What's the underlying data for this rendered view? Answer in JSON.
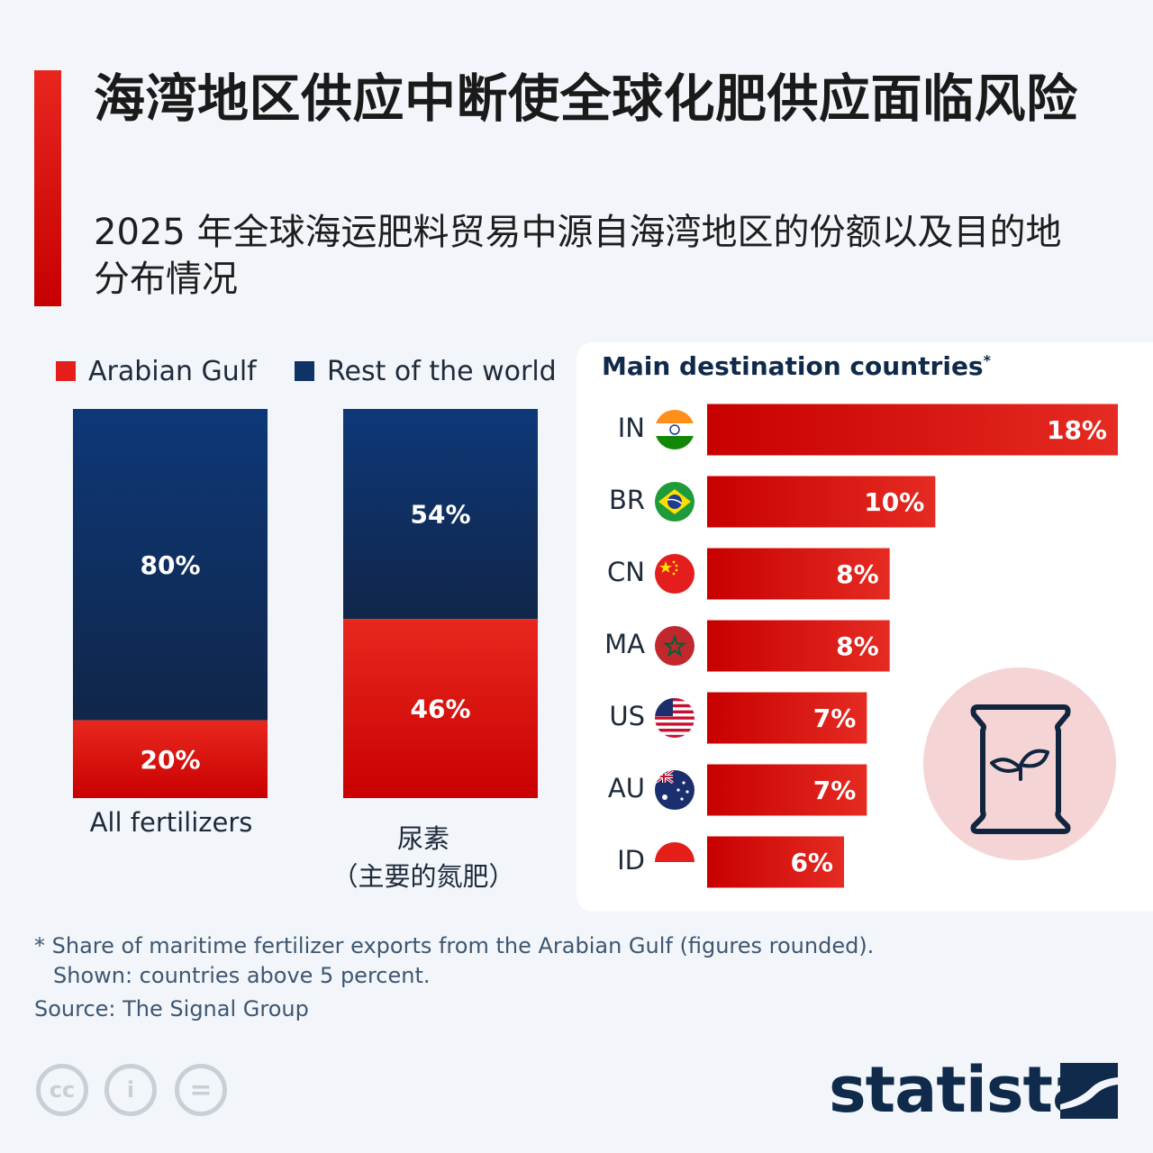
{
  "title": "海湾地区供应中断使全球化肥供应面临风险",
  "subtitle": "2025 年全球海运肥料贸易中源自海湾地区的份额以及目的地分布情况",
  "colors": {
    "gulf": "#e41f1a",
    "rest": "#0f3366",
    "bar": "#d81e19",
    "bag_bg": "#f5d4d6"
  },
  "chart_data": [
    {
      "type": "bar",
      "stacked": true,
      "legend": [
        "Arabian Gulf",
        "Rest of the world"
      ],
      "legend_position": "top",
      "categories": [
        "All fertilizers",
        "尿素（主要的氮肥）"
      ],
      "category_labels": [
        {
          "line1": "All fertilizers",
          "line2": ""
        },
        {
          "line1": "尿素",
          "line2": "（主要的氮肥）"
        }
      ],
      "series": [
        {
          "name": "Arabian Gulf",
          "values": [
            20,
            46
          ],
          "labels": [
            "20%",
            "46%"
          ]
        },
        {
          "name": "Rest of the world",
          "values": [
            80,
            54
          ],
          "labels": [
            "80%",
            "54%"
          ]
        }
      ],
      "ylim": [
        0,
        100
      ]
    },
    {
      "type": "bar",
      "orientation": "horizontal",
      "title": "Main destination countries",
      "title_marker": "*",
      "categories": [
        "IN",
        "BR",
        "CN",
        "MA",
        "US",
        "AU",
        "ID"
      ],
      "flags": [
        "india-flag-icon",
        "brazil-flag-icon",
        "china-flag-icon",
        "morocco-flag-icon",
        "usa-flag-icon",
        "australia-flag-icon",
        "indonesia-flag-icon"
      ],
      "values": [
        18,
        10,
        8,
        8,
        7,
        7,
        6
      ],
      "labels": [
        "18%",
        "10%",
        "8%",
        "8%",
        "7%",
        "7%",
        "6%"
      ],
      "xlim": [
        0,
        18
      ]
    }
  ],
  "icon": "fertilizer-bag-icon",
  "footnote": [
    "* Share of maritime fertilizer exports from the Arabian Gulf (figures rounded).",
    "Shown: countries above 5 percent."
  ],
  "source": "Source: The Signal Group",
  "license_icons": [
    "cc-icon",
    "attribution-icon",
    "no-derivatives-icon"
  ],
  "license_texts": [
    "cc",
    "i",
    "="
  ],
  "brand": "statista"
}
